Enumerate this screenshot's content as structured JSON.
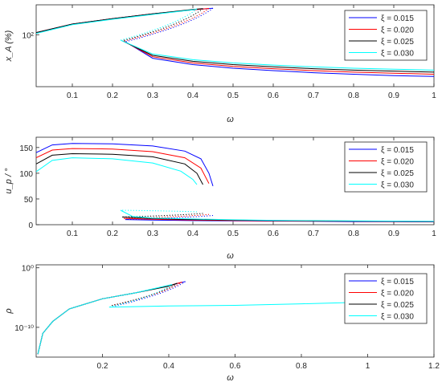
{
  "colors": {
    "s1": "#0000ff",
    "s2": "#ff0000",
    "s3": "#000000",
    "s4": "#00ffff"
  },
  "legend_entries": [
    "ξ = 0.015",
    "ξ = 0.020",
    "ξ = 0.025",
    "ξ = 0.030"
  ],
  "chart_data": [
    {
      "type": "line",
      "xlabel": "ω",
      "ylabel": "x_A (%)",
      "xlim": [
        0.01,
        1.0
      ],
      "ylim": [
        30,
        200
      ],
      "yscale": "log",
      "xticks": [
        0.1,
        0.2,
        0.3,
        0.4,
        0.5,
        0.6,
        0.7,
        0.8,
        0.9,
        1
      ],
      "ytick_labels": [
        "10²"
      ],
      "grid": false,
      "legend_position": "top-right",
      "series": [
        {
          "name": "ξ = 0.015",
          "turn": [
            0.45,
            185
          ],
          "tip": [
            0.232,
            85
          ],
          "upper": [
            [
              0.01,
              105
            ],
            [
              0.1,
              128
            ],
            [
              0.2,
              145
            ],
            [
              0.3,
              162
            ],
            [
              0.4,
              178
            ],
            [
              0.45,
              185
            ]
          ],
          "lower": [
            [
              0.232,
              85
            ],
            [
              0.3,
              58
            ],
            [
              0.4,
              50
            ],
            [
              0.5,
              46
            ],
            [
              0.6,
              43.5
            ],
            [
              0.7,
              41.5
            ],
            [
              0.8,
              40
            ],
            [
              0.9,
              38.8
            ],
            [
              1.0,
              38
            ]
          ]
        },
        {
          "name": "ξ = 0.020",
          "turn": [
            0.44,
            184
          ],
          "tip": [
            0.228,
            86
          ],
          "upper": [
            [
              0.01,
              105
            ],
            [
              0.1,
              128
            ],
            [
              0.2,
              145
            ],
            [
              0.3,
              162
            ],
            [
              0.4,
              178
            ],
            [
              0.44,
              184
            ]
          ],
          "lower": [
            [
              0.228,
              86
            ],
            [
              0.3,
              60
            ],
            [
              0.4,
              52
            ],
            [
              0.5,
              48
            ],
            [
              0.6,
              45.5
            ],
            [
              0.7,
              43.5
            ],
            [
              0.8,
              42
            ],
            [
              0.9,
              41
            ],
            [
              1.0,
              40
            ]
          ]
        },
        {
          "name": "ξ = 0.025",
          "turn": [
            0.425,
            183
          ],
          "tip": [
            0.224,
            87
          ],
          "upper": [
            [
              0.01,
              105
            ],
            [
              0.1,
              128
            ],
            [
              0.2,
              145
            ],
            [
              0.3,
              162
            ],
            [
              0.4,
              180
            ],
            [
              0.425,
              183
            ]
          ],
          "lower": [
            [
              0.224,
              87
            ],
            [
              0.3,
              62
            ],
            [
              0.4,
              54
            ],
            [
              0.5,
              50
            ],
            [
              0.6,
              47.5
            ],
            [
              0.7,
              45.5
            ],
            [
              0.8,
              44
            ],
            [
              0.9,
              43
            ],
            [
              1.0,
              42
            ]
          ]
        },
        {
          "name": "ξ = 0.030",
          "turn": [
            0.41,
            182
          ],
          "tip": [
            0.22,
            88
          ],
          "upper": [
            [
              0.01,
              103
            ],
            [
              0.1,
              126
            ],
            [
              0.2,
              143
            ],
            [
              0.3,
              160
            ],
            [
              0.4,
              178
            ],
            [
              0.41,
              182
            ]
          ],
          "lower": [
            [
              0.22,
              88
            ],
            [
              0.3,
              64
            ],
            [
              0.4,
              56
            ],
            [
              0.5,
              52
            ],
            [
              0.6,
              49.5
            ],
            [
              0.7,
              47.5
            ],
            [
              0.8,
              46
            ],
            [
              0.9,
              45
            ],
            [
              1.0,
              44
            ]
          ]
        }
      ]
    },
    {
      "type": "line",
      "xlabel": "ω",
      "ylabel": "u_p / °",
      "xlim": [
        0.01,
        1.0
      ],
      "ylim": [
        0,
        170
      ],
      "xticks": [
        0.1,
        0.2,
        0.3,
        0.4,
        0.5,
        0.6,
        0.7,
        0.8,
        0.9,
        1
      ],
      "yticks": [
        0,
        50,
        100,
        150
      ],
      "grid": false,
      "legend_position": "top-right",
      "series": [
        {
          "name": "ξ = 0.015",
          "turn": [
            0.45,
            18
          ],
          "tip": [
            0.232,
            10
          ],
          "upper": [
            [
              0.01,
              140
            ],
            [
              0.05,
              155
            ],
            [
              0.1,
              158
            ],
            [
              0.2,
              157
            ],
            [
              0.3,
              153
            ],
            [
              0.38,
              143
            ],
            [
              0.42,
              128
            ],
            [
              0.44,
              100
            ],
            [
              0.45,
              75
            ]
          ],
          "lower": [
            [
              0.232,
              10
            ],
            [
              0.3,
              9
            ],
            [
              0.4,
              8
            ],
            [
              0.5,
              7.5
            ],
            [
              0.6,
              7
            ],
            [
              0.7,
              6.5
            ],
            [
              0.8,
              6
            ],
            [
              0.9,
              5.8
            ],
            [
              1.0,
              5.5
            ]
          ]
        },
        {
          "name": "ξ = 0.020",
          "turn": [
            0.44,
            20
          ],
          "tip": [
            0.228,
            12
          ],
          "upper": [
            [
              0.01,
              130
            ],
            [
              0.05,
              145
            ],
            [
              0.1,
              148
            ],
            [
              0.2,
              147
            ],
            [
              0.3,
              142
            ],
            [
              0.38,
              130
            ],
            [
              0.42,
              110
            ],
            [
              0.44,
              80
            ]
          ],
          "lower": [
            [
              0.228,
              12
            ],
            [
              0.3,
              10.5
            ],
            [
              0.4,
              9
            ],
            [
              0.5,
              8
            ],
            [
              0.6,
              7.5
            ],
            [
              0.7,
              7
            ],
            [
              0.8,
              6.5
            ],
            [
              0.9,
              6.2
            ],
            [
              1.0,
              6
            ]
          ]
        },
        {
          "name": "ξ = 0.025",
          "turn": [
            0.425,
            22
          ],
          "tip": [
            0.224,
            15
          ],
          "upper": [
            [
              0.01,
              118
            ],
            [
              0.05,
              135
            ],
            [
              0.1,
              138
            ],
            [
              0.2,
              137
            ],
            [
              0.3,
              132
            ],
            [
              0.38,
              118
            ],
            [
              0.41,
              100
            ],
            [
              0.425,
              78
            ]
          ],
          "lower": [
            [
              0.224,
              15
            ],
            [
              0.3,
              12
            ],
            [
              0.4,
              10
            ],
            [
              0.5,
              9
            ],
            [
              0.6,
              8
            ],
            [
              0.7,
              7.5
            ],
            [
              0.8,
              7
            ],
            [
              0.9,
              6.6
            ],
            [
              1.0,
              6.3
            ]
          ]
        },
        {
          "name": "ξ = 0.030",
          "turn": [
            0.41,
            25
          ],
          "tip": [
            0.22,
            28
          ],
          "upper": [
            [
              0.01,
              103
            ],
            [
              0.05,
              125
            ],
            [
              0.1,
              130
            ],
            [
              0.2,
              128
            ],
            [
              0.3,
              120
            ],
            [
              0.37,
              104
            ],
            [
              0.4,
              88
            ],
            [
              0.41,
              78
            ]
          ],
          "lower": [
            [
              0.22,
              28
            ],
            [
              0.25,
              16
            ],
            [
              0.3,
              13
            ],
            [
              0.4,
              11
            ],
            [
              0.5,
              9.5
            ],
            [
              0.6,
              8.5
            ],
            [
              0.7,
              8
            ],
            [
              0.8,
              7.5
            ],
            [
              0.9,
              7
            ],
            [
              1.0,
              6.6
            ]
          ]
        }
      ]
    },
    {
      "type": "line",
      "xlabel": "ω",
      "ylabel": "ρ",
      "xlim": [
        0.0,
        1.2
      ],
      "ylim": [
        -15,
        0.5
      ],
      "yscale": "log",
      "xticks": [
        0.2,
        0.4,
        0.6,
        0.8,
        1,
        1.2
      ],
      "ytick_labels": [
        "10⁰",
        "10⁻¹⁰"
      ],
      "grid": false,
      "legend_position": "top-right",
      "series": [
        {
          "name": "ξ = 0.015",
          "turn": [
            0.45,
            -2.3
          ],
          "tip": [
            0.232,
            -6.5
          ],
          "upper": [
            [
              0.005,
              -14.5
            ],
            [
              0.02,
              -11
            ],
            [
              0.05,
              -9
            ],
            [
              0.1,
              -6.9
            ],
            [
              0.2,
              -5.2
            ],
            [
              0.3,
              -4.2
            ],
            [
              0.4,
              -3.0
            ],
            [
              0.45,
              -2.3
            ]
          ],
          "lower": []
        },
        {
          "name": "ξ = 0.020",
          "turn": [
            0.44,
            -2.4
          ],
          "tip": [
            0.228,
            -6.3
          ],
          "upper": [
            [
              0.005,
              -14.5
            ],
            [
              0.02,
              -11
            ],
            [
              0.05,
              -9
            ],
            [
              0.1,
              -6.9
            ],
            [
              0.2,
              -5.2
            ],
            [
              0.3,
              -4.2
            ],
            [
              0.4,
              -3.0
            ],
            [
              0.44,
              -2.4
            ]
          ],
          "lower": []
        },
        {
          "name": "ξ = 0.025",
          "turn": [
            0.425,
            -2.6
          ],
          "tip": [
            0.224,
            -6.4
          ],
          "upper": [
            [
              0.005,
              -14.5
            ],
            [
              0.02,
              -11
            ],
            [
              0.05,
              -9
            ],
            [
              0.1,
              -6.9
            ],
            [
              0.2,
              -5.2
            ],
            [
              0.3,
              -4.2
            ],
            [
              0.4,
              -3.1
            ],
            [
              0.425,
              -2.6
            ]
          ],
          "lower": []
        },
        {
          "name": "ξ = 0.030",
          "turn": [
            0.41,
            -2.8
          ],
          "tip": [
            0.22,
            -6.6
          ],
          "upper": [
            [
              0.005,
              -14.5
            ],
            [
              0.02,
              -11
            ],
            [
              0.05,
              -9
            ],
            [
              0.1,
              -6.9
            ],
            [
              0.2,
              -5.2
            ],
            [
              0.3,
              -4.2
            ],
            [
              0.41,
              -2.8
            ]
          ],
          "lower": [
            [
              0.22,
              -6.6
            ],
            [
              0.4,
              -6.4
            ],
            [
              0.6,
              -6.3
            ],
            [
              0.8,
              -6.05
            ],
            [
              1.0,
              -5.75
            ],
            [
              1.05,
              -5.7
            ]
          ]
        }
      ]
    }
  ]
}
